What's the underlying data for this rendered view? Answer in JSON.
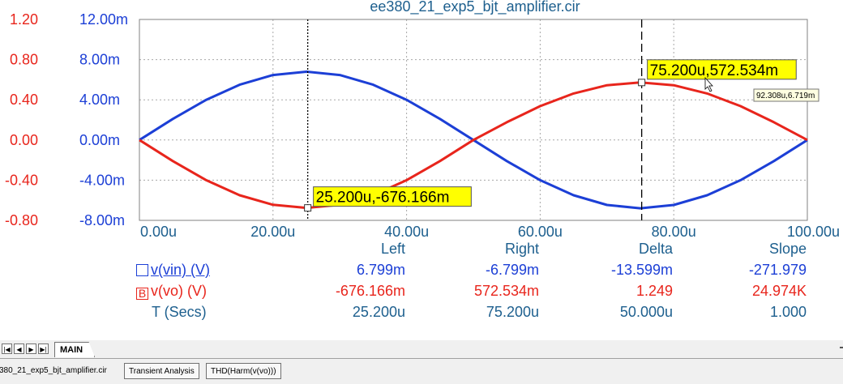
{
  "chart_data": {
    "type": "line",
    "title": "ee380_21_exp5_bjt_amplifier.cir",
    "xlabel": "T (Secs)",
    "x_ticks": [
      "0.00u",
      "20.00u",
      "40.00u",
      "60.00u",
      "80.00u",
      "100.00u"
    ],
    "xlim": [
      0,
      100
    ],
    "x_unit": "u",
    "left_axis_red": {
      "ticks": [
        "1.20",
        "0.80",
        "0.40",
        "0.00",
        "-0.40",
        "-0.80"
      ],
      "lim": [
        -0.8,
        1.2
      ]
    },
    "left_axis_blue": {
      "ticks": [
        "12.00m",
        "8.00m",
        "4.00m",
        "0.00m",
        "-4.00m",
        "-8.00m"
      ],
      "lim": [
        -8,
        12
      ]
    },
    "grid": true,
    "series": [
      {
        "name": "v(vin) (V)",
        "color": "#1c3fd6",
        "axis": "blue",
        "x": [
          0,
          5,
          10,
          15,
          20,
          25,
          30,
          35,
          40,
          45,
          50,
          55,
          60,
          65,
          70,
          75,
          80,
          85,
          90,
          95,
          100
        ],
        "y": [
          0,
          2.1,
          4.0,
          5.5,
          6.47,
          6.8,
          6.47,
          5.5,
          4.0,
          2.1,
          0,
          -2.1,
          -4.0,
          -5.5,
          -6.47,
          -6.8,
          -6.47,
          -5.5,
          -4.0,
          -2.1,
          0
        ]
      },
      {
        "name": "v(vo) (V)",
        "color": "#e8251c",
        "axis": "red",
        "x": [
          0,
          5,
          10,
          15,
          20,
          25,
          30,
          35,
          40,
          45,
          50,
          55,
          60,
          65,
          70,
          75,
          80,
          85,
          90,
          95,
          100
        ],
        "y": [
          0,
          -0.21,
          -0.4,
          -0.55,
          -0.645,
          -0.676,
          -0.645,
          -0.55,
          -0.4,
          -0.21,
          0,
          0.177,
          0.337,
          0.463,
          0.545,
          0.573,
          0.545,
          0.463,
          0.337,
          0.177,
          0
        ]
      }
    ],
    "cursors": [
      {
        "x": 25.2,
        "label": "25.200u,-676.166m",
        "value_y": -0.676166,
        "style": "dotted"
      },
      {
        "x": 75.2,
        "label": "75.200u,572.534m",
        "value_y": 0.572534,
        "style": "dashed"
      }
    ],
    "tooltip": "92.308u,6.719m"
  },
  "measurements": {
    "headers": [
      "Left",
      "Right",
      "Delta",
      "Slope"
    ],
    "rows": [
      {
        "swatch": "",
        "label": "v(vin) (V)",
        "values": [
          "6.799m",
          "-6.799m",
          "-13.599m",
          "-271.979"
        ]
      },
      {
        "swatch": "B",
        "label": "v(vo) (V)",
        "values": [
          "-676.166m",
          "572.534m",
          "1.249",
          "24.974K"
        ]
      },
      {
        "swatch": "",
        "label": "T (Secs)",
        "values": [
          "25.200u",
          "75.200u",
          "50.000u",
          "1.000"
        ]
      }
    ]
  },
  "sheet": {
    "tab": "MAIN"
  },
  "analysis_tabs": [
    "380_21_exp5_bjt_amplifier.cir",
    "Transient Analysis",
    "THD(Harm(v(vo)))"
  ],
  "colors": {
    "red": "#e8251c",
    "blue": "#1c3fd6",
    "axis_text": "#1d5f8e",
    "cursor_label_bg": "#ffff00"
  }
}
